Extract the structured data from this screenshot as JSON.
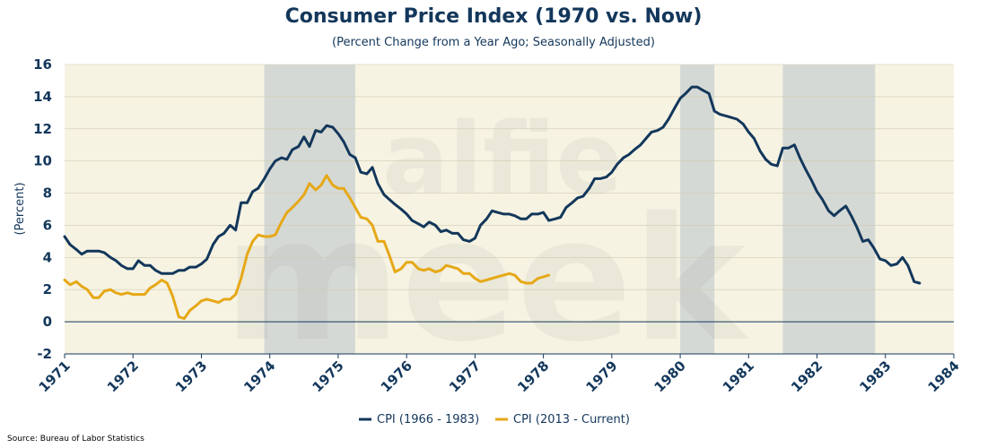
{
  "title": "Consumer Price Index (1970 vs. Now)",
  "subtitle": "(Percent Change from a Year Ago; Seasonally Adjusted)",
  "source": "Source: Bureau of Labor Statistics",
  "watermark": {
    "top": "alfie",
    "bottom": "meek"
  },
  "colors": {
    "series1": "#13375b",
    "series2": "#e6a817",
    "plot_bg": "#f6f3e3",
    "recession": "#c9d0d0"
  },
  "chart_data": {
    "type": "line",
    "title": "Consumer Price Index (1970 vs. Now)",
    "subtitle": "(Percent Change from a Year Ago; Seasonally Adjusted)",
    "ylabel": "(Percent)",
    "xlabel": "",
    "xlim": [
      1971,
      1984
    ],
    "ylim": [
      -2,
      16
    ],
    "x_ticks": [
      "1971",
      "1972",
      "1973",
      "1974",
      "1975",
      "1976",
      "1977",
      "1978",
      "1979",
      "1980",
      "1981",
      "1982",
      "1983",
      "1984"
    ],
    "y_ticks": [
      "-2",
      "0",
      "2",
      "4",
      "6",
      "8",
      "10",
      "12",
      "14",
      "16"
    ],
    "grid": "horizontal",
    "legend": "bottom-center",
    "recessions": [
      [
        1973.92,
        1975.25
      ],
      [
        1980.0,
        1980.5
      ],
      [
        1981.5,
        1982.85
      ]
    ],
    "series": [
      {
        "name": "CPI (1966 - 1983)",
        "color": "#13375b",
        "points": [
          [
            1971.0,
            5.3
          ],
          [
            1971.08,
            4.8
          ],
          [
            1971.17,
            4.5
          ],
          [
            1971.25,
            4.2
          ],
          [
            1971.33,
            4.4
          ],
          [
            1971.42,
            4.4
          ],
          [
            1971.5,
            4.4
          ],
          [
            1971.58,
            4.3
          ],
          [
            1971.67,
            4.0
          ],
          [
            1971.75,
            3.8
          ],
          [
            1971.83,
            3.5
          ],
          [
            1971.92,
            3.3
          ],
          [
            1972.0,
            3.3
          ],
          [
            1972.08,
            3.8
          ],
          [
            1972.17,
            3.5
          ],
          [
            1972.25,
            3.5
          ],
          [
            1972.33,
            3.2
          ],
          [
            1972.42,
            3.0
          ],
          [
            1972.5,
            3.0
          ],
          [
            1972.58,
            3.0
          ],
          [
            1972.67,
            3.2
          ],
          [
            1972.75,
            3.2
          ],
          [
            1972.83,
            3.4
          ],
          [
            1972.92,
            3.4
          ],
          [
            1973.0,
            3.6
          ],
          [
            1973.08,
            3.9
          ],
          [
            1973.17,
            4.8
          ],
          [
            1973.25,
            5.3
          ],
          [
            1973.33,
            5.5
          ],
          [
            1973.42,
            6.0
          ],
          [
            1973.5,
            5.7
          ],
          [
            1973.58,
            7.4
          ],
          [
            1973.67,
            7.4
          ],
          [
            1973.75,
            8.1
          ],
          [
            1973.83,
            8.3
          ],
          [
            1973.92,
            8.9
          ],
          [
            1974.0,
            9.5
          ],
          [
            1974.08,
            10.0
          ],
          [
            1974.17,
            10.2
          ],
          [
            1974.25,
            10.1
          ],
          [
            1974.33,
            10.7
          ],
          [
            1974.42,
            10.9
          ],
          [
            1974.5,
            11.5
          ],
          [
            1974.58,
            10.9
          ],
          [
            1974.67,
            11.9
          ],
          [
            1974.75,
            11.8
          ],
          [
            1974.83,
            12.2
          ],
          [
            1974.92,
            12.1
          ],
          [
            1975.0,
            11.7
          ],
          [
            1975.08,
            11.2
          ],
          [
            1975.17,
            10.4
          ],
          [
            1975.25,
            10.2
          ],
          [
            1975.33,
            9.3
          ],
          [
            1975.42,
            9.2
          ],
          [
            1975.5,
            9.6
          ],
          [
            1975.58,
            8.6
          ],
          [
            1975.67,
            7.9
          ],
          [
            1975.75,
            7.6
          ],
          [
            1975.83,
            7.3
          ],
          [
            1975.92,
            7.0
          ],
          [
            1976.0,
            6.7
          ],
          [
            1976.08,
            6.3
          ],
          [
            1976.17,
            6.1
          ],
          [
            1976.25,
            5.9
          ],
          [
            1976.33,
            6.2
          ],
          [
            1976.42,
            6.0
          ],
          [
            1976.5,
            5.6
          ],
          [
            1976.58,
            5.7
          ],
          [
            1976.67,
            5.5
          ],
          [
            1976.75,
            5.5
          ],
          [
            1976.83,
            5.1
          ],
          [
            1976.92,
            5.0
          ],
          [
            1977.0,
            5.2
          ],
          [
            1977.08,
            6.0
          ],
          [
            1977.17,
            6.4
          ],
          [
            1977.25,
            6.9
          ],
          [
            1977.33,
            6.8
          ],
          [
            1977.42,
            6.7
          ],
          [
            1977.5,
            6.7
          ],
          [
            1977.58,
            6.6
          ],
          [
            1977.67,
            6.4
          ],
          [
            1977.75,
            6.4
          ],
          [
            1977.83,
            6.7
          ],
          [
            1977.92,
            6.7
          ],
          [
            1978.0,
            6.8
          ],
          [
            1978.08,
            6.3
          ],
          [
            1978.17,
            6.4
          ],
          [
            1978.25,
            6.5
          ],
          [
            1978.33,
            7.1
          ],
          [
            1978.42,
            7.4
          ],
          [
            1978.5,
            7.7
          ],
          [
            1978.58,
            7.8
          ],
          [
            1978.67,
            8.3
          ],
          [
            1978.75,
            8.9
          ],
          [
            1978.83,
            8.9
          ],
          [
            1978.92,
            9.0
          ],
          [
            1979.0,
            9.3
          ],
          [
            1979.08,
            9.8
          ],
          [
            1979.17,
            10.2
          ],
          [
            1979.25,
            10.4
          ],
          [
            1979.33,
            10.7
          ],
          [
            1979.42,
            11.0
          ],
          [
            1979.5,
            11.4
          ],
          [
            1979.58,
            11.8
          ],
          [
            1979.67,
            11.9
          ],
          [
            1979.75,
            12.1
          ],
          [
            1979.83,
            12.6
          ],
          [
            1979.92,
            13.3
          ],
          [
            1980.0,
            13.9
          ],
          [
            1980.08,
            14.2
          ],
          [
            1980.17,
            14.6
          ],
          [
            1980.25,
            14.6
          ],
          [
            1980.33,
            14.4
          ],
          [
            1980.42,
            14.2
          ],
          [
            1980.5,
            13.1
          ],
          [
            1980.58,
            12.9
          ],
          [
            1980.67,
            12.8
          ],
          [
            1980.75,
            12.7
          ],
          [
            1980.83,
            12.6
          ],
          [
            1980.92,
            12.3
          ],
          [
            1981.0,
            11.8
          ],
          [
            1981.08,
            11.4
          ],
          [
            1981.17,
            10.6
          ],
          [
            1981.25,
            10.1
          ],
          [
            1981.33,
            9.8
          ],
          [
            1981.42,
            9.7
          ],
          [
            1981.5,
            10.8
          ],
          [
            1981.58,
            10.8
          ],
          [
            1981.67,
            11.0
          ],
          [
            1981.75,
            10.2
          ],
          [
            1981.83,
            9.5
          ],
          [
            1981.92,
            8.8
          ],
          [
            1982.0,
            8.1
          ],
          [
            1982.08,
            7.6
          ],
          [
            1982.17,
            6.9
          ],
          [
            1982.25,
            6.6
          ],
          [
            1982.33,
            6.9
          ],
          [
            1982.42,
            7.2
          ],
          [
            1982.5,
            6.6
          ],
          [
            1982.58,
            5.9
          ],
          [
            1982.67,
            5.0
          ],
          [
            1982.75,
            5.1
          ],
          [
            1982.83,
            4.6
          ],
          [
            1982.92,
            3.9
          ],
          [
            1983.0,
            3.8
          ],
          [
            1983.08,
            3.5
          ],
          [
            1983.17,
            3.6
          ],
          [
            1983.25,
            4.0
          ],
          [
            1983.33,
            3.5
          ],
          [
            1983.42,
            2.5
          ],
          [
            1983.5,
            2.4
          ]
        ]
      },
      {
        "name": "CPI (2013 - Current)",
        "color": "#e6a817",
        "points": [
          [
            1971.0,
            2.6
          ],
          [
            1971.08,
            2.3
          ],
          [
            1971.17,
            2.5
          ],
          [
            1971.25,
            2.2
          ],
          [
            1971.33,
            2.0
          ],
          [
            1971.42,
            1.5
          ],
          [
            1971.5,
            1.5
          ],
          [
            1971.58,
            1.9
          ],
          [
            1971.67,
            2.0
          ],
          [
            1971.75,
            1.8
          ],
          [
            1971.83,
            1.7
          ],
          [
            1971.92,
            1.8
          ],
          [
            1972.0,
            1.7
          ],
          [
            1972.08,
            1.7
          ],
          [
            1972.17,
            1.7
          ],
          [
            1972.25,
            2.1
          ],
          [
            1972.33,
            2.3
          ],
          [
            1972.42,
            2.6
          ],
          [
            1972.5,
            2.4
          ],
          [
            1972.58,
            1.6
          ],
          [
            1972.67,
            0.3
          ],
          [
            1972.75,
            0.2
          ],
          [
            1972.83,
            0.7
          ],
          [
            1972.92,
            1.0
          ],
          [
            1973.0,
            1.3
          ],
          [
            1973.08,
            1.4
          ],
          [
            1973.17,
            1.3
          ],
          [
            1973.25,
            1.2
          ],
          [
            1973.33,
            1.4
          ],
          [
            1973.42,
            1.4
          ],
          [
            1973.5,
            1.7
          ],
          [
            1973.58,
            2.7
          ],
          [
            1973.67,
            4.2
          ],
          [
            1973.75,
            5.0
          ],
          [
            1973.83,
            5.4
          ],
          [
            1973.92,
            5.3
          ],
          [
            1974.0,
            5.3
          ],
          [
            1974.08,
            5.4
          ],
          [
            1974.17,
            6.2
          ],
          [
            1974.25,
            6.8
          ],
          [
            1974.33,
            7.1
          ],
          [
            1974.42,
            7.5
          ],
          [
            1974.5,
            7.9
          ],
          [
            1974.58,
            8.6
          ],
          [
            1974.67,
            8.2
          ],
          [
            1974.75,
            8.5
          ],
          [
            1974.83,
            9.1
          ],
          [
            1974.92,
            8.5
          ],
          [
            1975.0,
            8.3
          ],
          [
            1975.08,
            8.3
          ],
          [
            1975.17,
            7.7
          ],
          [
            1975.25,
            7.1
          ],
          [
            1975.33,
            6.5
          ],
          [
            1975.42,
            6.4
          ],
          [
            1975.5,
            6.0
          ],
          [
            1975.58,
            5.0
          ],
          [
            1975.67,
            5.0
          ],
          [
            1975.75,
            4.1
          ],
          [
            1975.83,
            3.1
          ],
          [
            1975.92,
            3.3
          ],
          [
            1976.0,
            3.7
          ],
          [
            1976.08,
            3.7
          ],
          [
            1976.17,
            3.3
          ],
          [
            1976.25,
            3.2
          ],
          [
            1976.33,
            3.3
          ],
          [
            1976.42,
            3.1
          ],
          [
            1976.5,
            3.2
          ],
          [
            1976.58,
            3.5
          ],
          [
            1976.67,
            3.4
          ],
          [
            1976.75,
            3.3
          ],
          [
            1976.83,
            3.0
          ],
          [
            1976.92,
            3.0
          ],
          [
            1977.0,
            2.7
          ],
          [
            1977.08,
            2.5
          ],
          [
            1977.17,
            2.6
          ],
          [
            1977.25,
            2.7
          ],
          [
            1977.33,
            2.8
          ],
          [
            1977.42,
            2.9
          ],
          [
            1977.5,
            3.0
          ],
          [
            1977.58,
            2.9
          ],
          [
            1977.67,
            2.5
          ],
          [
            1977.75,
            2.4
          ],
          [
            1977.83,
            2.4
          ],
          [
            1977.92,
            2.7
          ],
          [
            1978.0,
            2.8
          ],
          [
            1978.08,
            2.9
          ]
        ]
      }
    ]
  }
}
